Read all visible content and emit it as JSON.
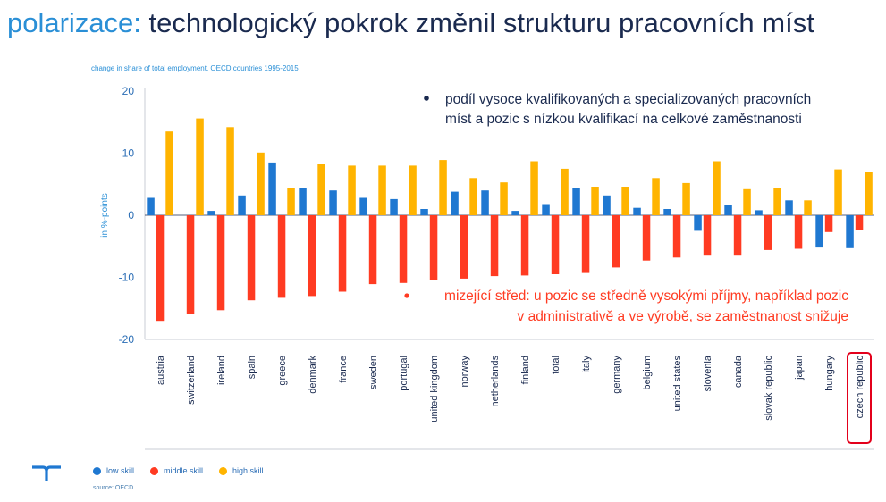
{
  "page": {
    "title_prefix": "polarizace:",
    "title_rest": " technologický pokrok změnil strukturu pracovních míst",
    "source": "source: OECD"
  },
  "colors": {
    "low": "#1f78d1",
    "middle": "#ff3b22",
    "high": "#ffb400",
    "accent": "#2a8fd6",
    "title": "#1a2a4f",
    "highlight_box": "#e3001b"
  },
  "chart_data": {
    "type": "bar",
    "subtitle": "change in share of total employment, OECD countries 1995-2015",
    "ylabel": "in %-points",
    "xlabel": "",
    "ylim": [
      -20,
      20
    ],
    "yticks": [
      20,
      10,
      0,
      -10,
      -20
    ],
    "grid": false,
    "legend_position": "bottom-left",
    "categories": [
      "austria",
      "switzerland",
      "ireland",
      "spain",
      "greece",
      "denmark",
      "france",
      "sweden",
      "portugal",
      "united kingdom",
      "norway",
      "netherlands",
      "finland",
      "total",
      "italy",
      "germany",
      "belgium",
      "united states",
      "slovenia",
      "canada",
      "slovak republic",
      "japan",
      "hungary",
      "czech republic"
    ],
    "highlighted_category": "czech republic",
    "series": [
      {
        "name": "low skill",
        "values": [
          2.8,
          0,
          0.7,
          3.2,
          8.5,
          4.4,
          4.0,
          2.8,
          2.6,
          1.0,
          3.8,
          4.0,
          0.7,
          1.8,
          4.4,
          3.2,
          1.2,
          1.0,
          -2.5,
          1.6,
          0.8,
          2.4,
          -5.2,
          -5.3
        ]
      },
      {
        "name": "middle skill",
        "values": [
          -17.0,
          -15.9,
          -15.3,
          -13.7,
          -13.3,
          -13.0,
          -12.3,
          -11.1,
          -10.9,
          -10.4,
          -10.2,
          -9.8,
          -9.7,
          -9.5,
          -9.3,
          -8.4,
          -7.3,
          -6.8,
          -6.5,
          -6.5,
          -5.6,
          -5.4,
          -2.7,
          -2.3
        ]
      },
      {
        "name": "high skill",
        "values": [
          13.5,
          15.6,
          14.2,
          10.1,
          4.4,
          8.2,
          8.0,
          8.0,
          8.0,
          8.9,
          6.0,
          5.3,
          8.7,
          7.5,
          4.6,
          4.6,
          6.0,
          5.2,
          8.7,
          4.2,
          4.4,
          2.4,
          7.4,
          7.0
        ]
      }
    ],
    "annotations": [
      {
        "color": "#1a2a4f",
        "lines": [
          "podíl vysoce kvalifikovaných a specializovaných pracovních",
          "míst a pozic s nízkou kvalifikací na celkové zaměstnanosti"
        ]
      },
      {
        "color": "#ff3b22",
        "lines": [
          "mizející střed: u pozic se středně vysokými příjmy, například pozic",
          "v administrativě a ve výrobě, se zaměstnanost snižuje"
        ]
      }
    ]
  }
}
